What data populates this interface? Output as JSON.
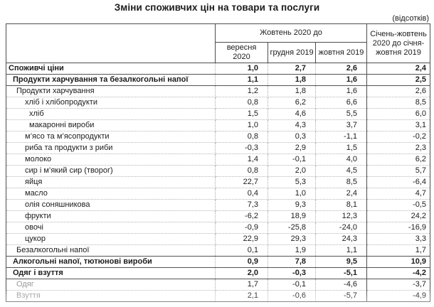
{
  "title": "Зміни споживчих цін на товари та послуги",
  "unit_note": "(відсотків)",
  "table": {
    "group_header": "Жовтень 2020 до",
    "columns": [
      "вересня 2020",
      "грудня 2019",
      "жовтня 2019"
    ],
    "period_header": "Січень-жовтень 2020 до січня-жовтня 2019",
    "rows": [
      {
        "label": "Споживчі ціни",
        "level": 0,
        "bold": true,
        "faded": false,
        "values": [
          "1,0",
          "2,7",
          "2,6",
          "2,4"
        ]
      },
      {
        "label": "Продукти харчування та безалкогольні напої",
        "level": 1,
        "bold": true,
        "faded": false,
        "values": [
          "1,1",
          "1,8",
          "1,6",
          "2,5"
        ]
      },
      {
        "label": "Продукти харчування",
        "level": 2,
        "bold": false,
        "faded": false,
        "values": [
          "1,2",
          "1,8",
          "1,6",
          "2,6"
        ]
      },
      {
        "label": "хліб і хлібопродукти",
        "level": 3,
        "bold": false,
        "faded": false,
        "values": [
          "0,8",
          "6,2",
          "6,6",
          "8,5"
        ]
      },
      {
        "label": "хліб",
        "level": 4,
        "bold": false,
        "faded": false,
        "values": [
          "1,5",
          "4,6",
          "5,5",
          "6,0"
        ]
      },
      {
        "label": "макаронні вироби",
        "level": 4,
        "bold": false,
        "faded": false,
        "values": [
          "1,0",
          "4,3",
          "3,7",
          "3,1"
        ]
      },
      {
        "label": "м’ясо та м’ясопродукти",
        "level": 3,
        "bold": false,
        "faded": false,
        "values": [
          "0,8",
          "0,3",
          "-1,1",
          "-0,2"
        ]
      },
      {
        "label": "риба та продукти з риби",
        "level": 3,
        "bold": false,
        "faded": false,
        "values": [
          "-0,3",
          "2,9",
          "1,5",
          "2,3"
        ]
      },
      {
        "label": "молоко",
        "level": 3,
        "bold": false,
        "faded": false,
        "values": [
          "1,4",
          "-0,1",
          "4,0",
          "6,2"
        ]
      },
      {
        "label": "сир і м’який сир (творог)",
        "level": 3,
        "bold": false,
        "faded": false,
        "values": [
          "0,8",
          "2,0",
          "4,5",
          "5,7"
        ]
      },
      {
        "label": "яйця",
        "level": 3,
        "bold": false,
        "faded": false,
        "values": [
          "22,7",
          "5,3",
          "8,5",
          "-6,4"
        ]
      },
      {
        "label": "масло",
        "level": 3,
        "bold": false,
        "faded": false,
        "values": [
          "0,4",
          "1,0",
          "2,4",
          "4,7"
        ]
      },
      {
        "label": "олія соняшникова",
        "level": 3,
        "bold": false,
        "faded": false,
        "values": [
          "7,3",
          "9,3",
          "8,1",
          "-0,5"
        ]
      },
      {
        "label": "фрукти",
        "level": 3,
        "bold": false,
        "faded": false,
        "values": [
          "-6,2",
          "18,9",
          "12,3",
          "24,2"
        ]
      },
      {
        "label": "овочі",
        "level": 3,
        "bold": false,
        "faded": false,
        "values": [
          "-0,9",
          "-25,8",
          "-24,0",
          "-16,9"
        ]
      },
      {
        "label": "цукор",
        "level": 3,
        "bold": false,
        "faded": false,
        "values": [
          "22,9",
          "29,3",
          "24,3",
          "3,3"
        ]
      },
      {
        "label": "Безалкогольні напої",
        "level": 2,
        "bold": false,
        "faded": false,
        "values": [
          "0,1",
          "1,9",
          "1,1",
          "1,7"
        ]
      },
      {
        "label": "Алкогольні напої, тютюнові вироби",
        "level": 1,
        "bold": true,
        "faded": false,
        "values": [
          "0,9",
          "7,8",
          "9,5",
          "10,9"
        ]
      },
      {
        "label": "Одяг і взуття",
        "level": 1,
        "bold": true,
        "faded": false,
        "values": [
          "2,0",
          "-0,3",
          "-5,1",
          "-4,2"
        ]
      },
      {
        "label": "Одяг",
        "level": 2,
        "bold": false,
        "faded": true,
        "values": [
          "1,7",
          "-0,1",
          "-4,6",
          "-3,7"
        ]
      },
      {
        "label": "Взуття",
        "level": 2,
        "bold": false,
        "faded": true,
        "values": [
          "2,1",
          "-0,6",
          "-5,7",
          "-4,9"
        ]
      }
    ]
  }
}
